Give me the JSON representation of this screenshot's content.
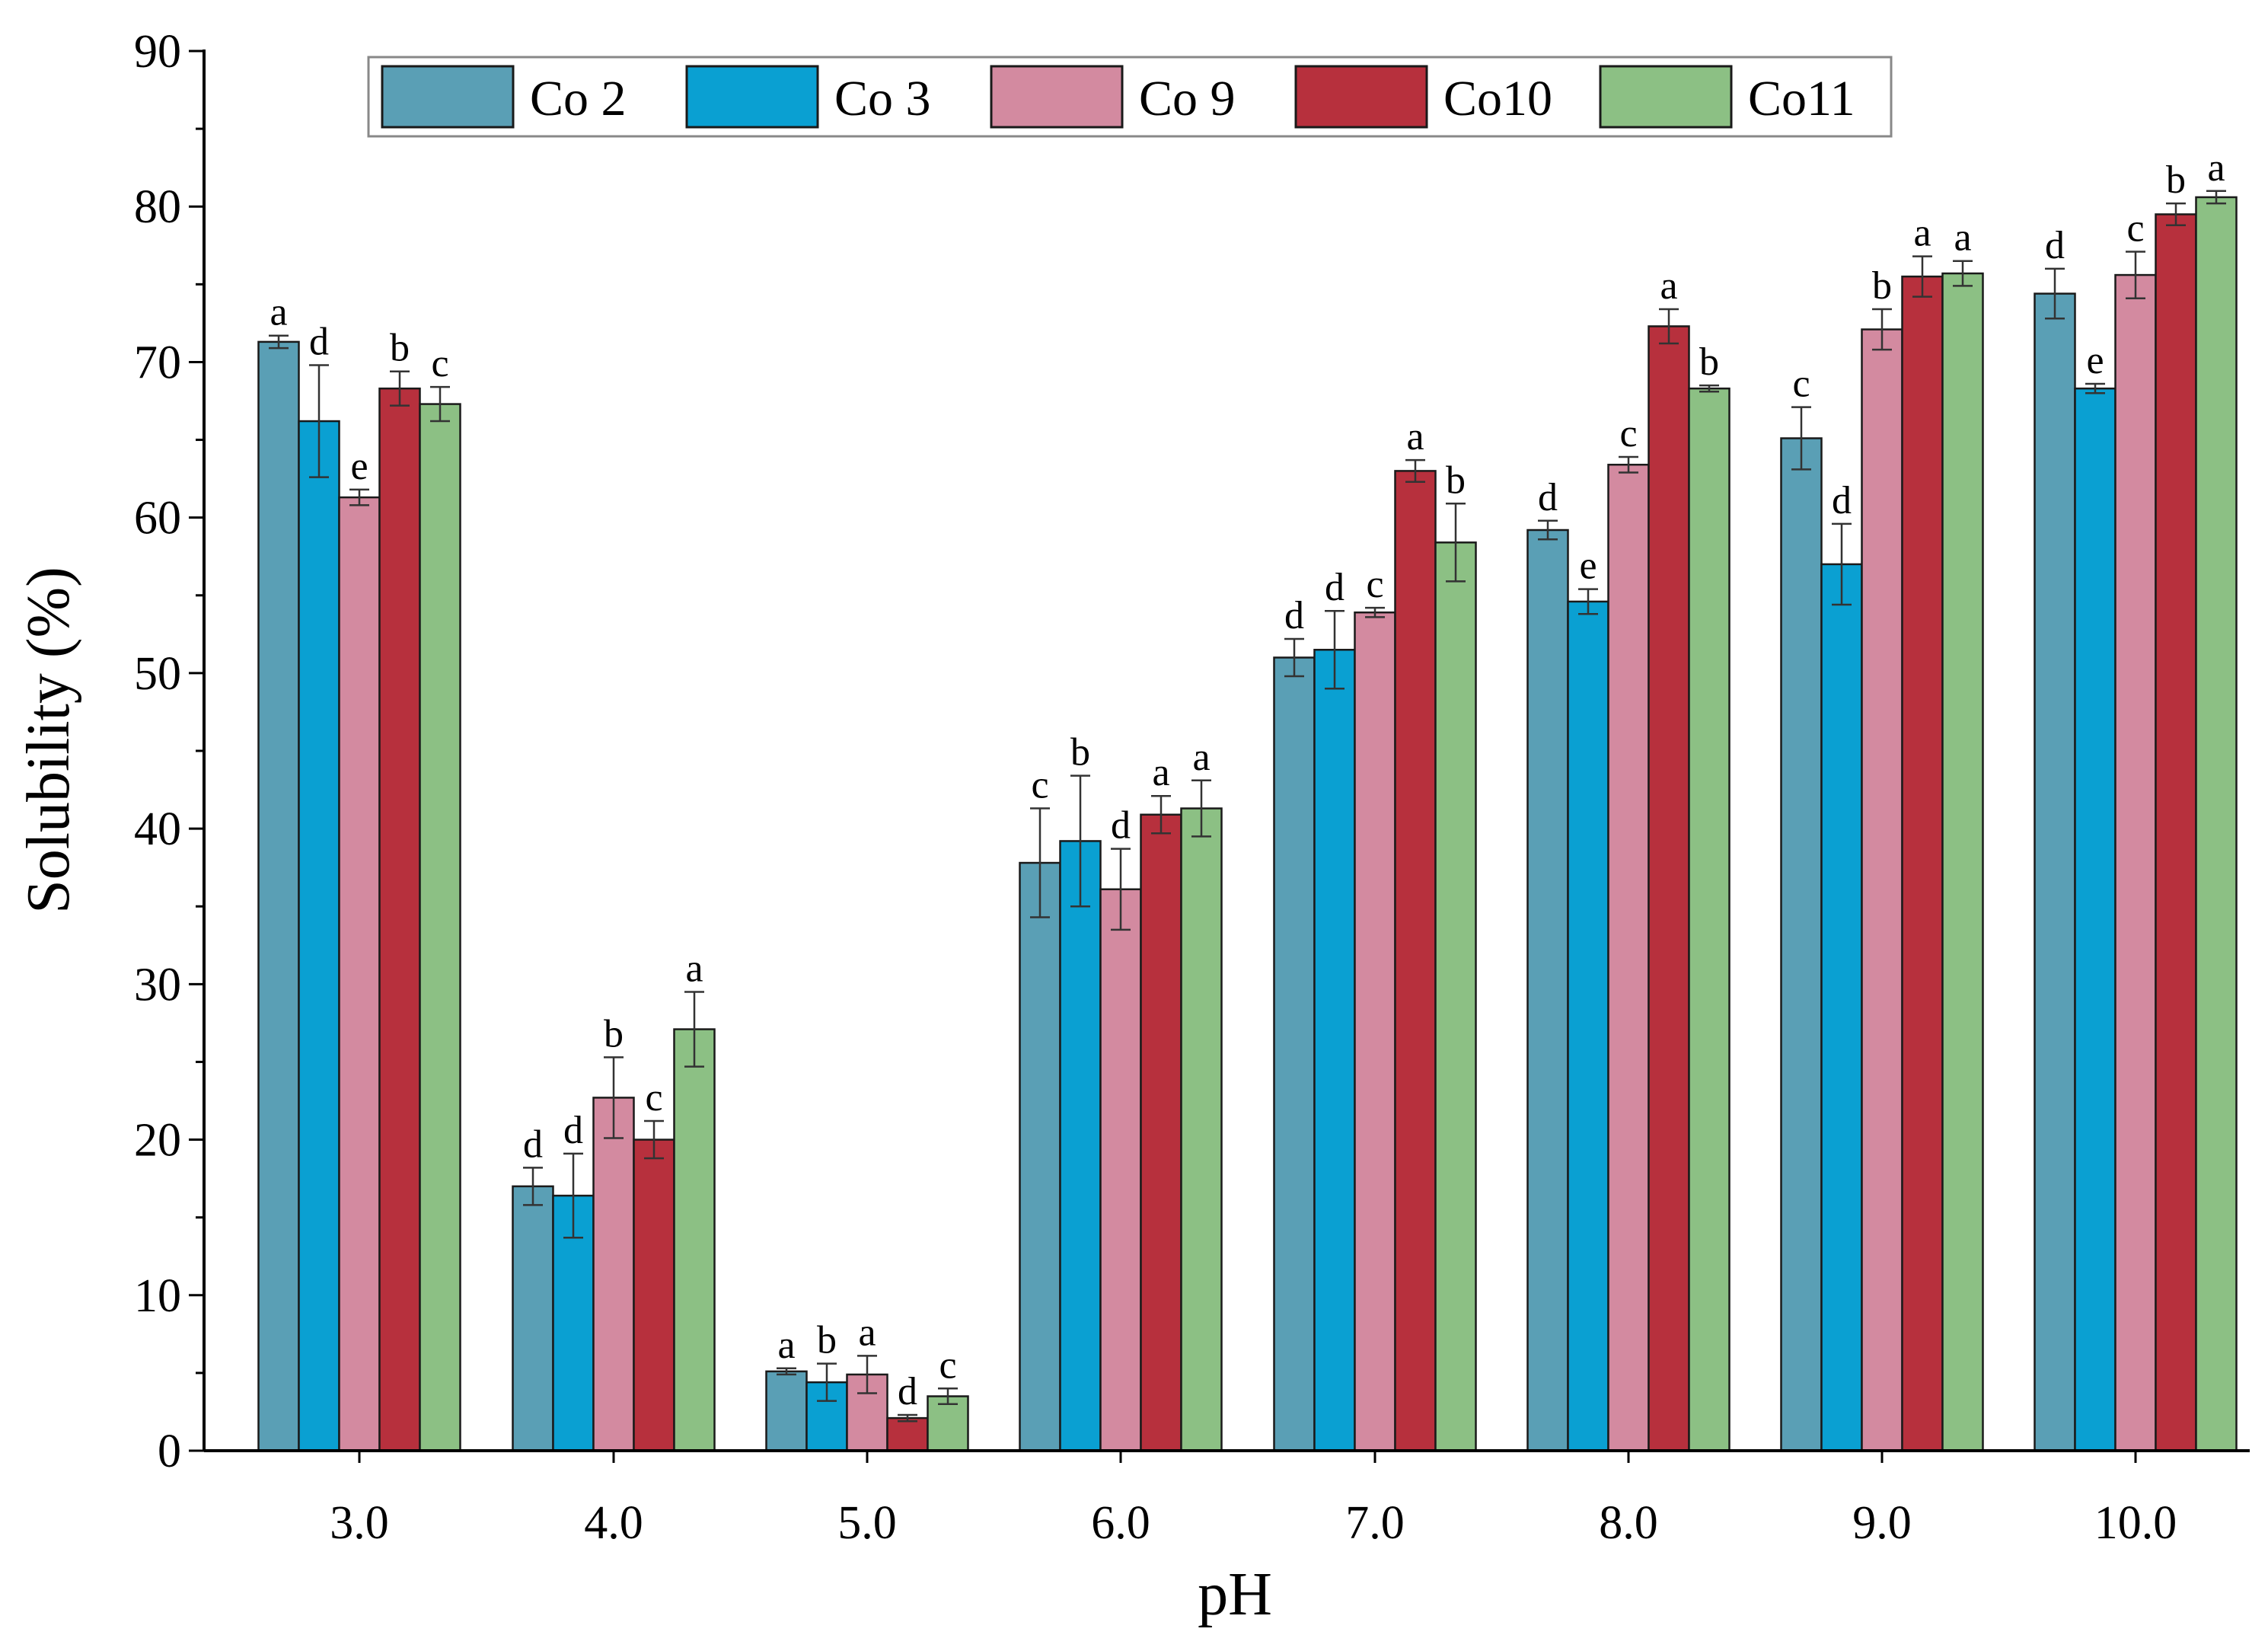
{
  "chart_data": {
    "type": "bar",
    "title": "",
    "xlabel": "pH",
    "ylabel": "Solubility (%)",
    "ylim": [
      0,
      90
    ],
    "yticks": [
      "0",
      "10",
      "20",
      "30",
      "40",
      "50",
      "60",
      "70",
      "80",
      "90"
    ],
    "grid": false,
    "legend_position": "top",
    "categories": [
      "3.0",
      "4.0",
      "5.0",
      "6.0",
      "7.0",
      "8.0",
      "9.0",
      "10.0"
    ],
    "series": [
      {
        "name": "Co 2",
        "color": "#5a9fb5",
        "values": [
          71.3,
          17.0,
          5.1,
          37.8,
          51.0,
          59.2,
          65.1,
          74.4
        ],
        "errors": [
          0.4,
          1.2,
          0.2,
          3.5,
          1.2,
          0.6,
          2.0,
          1.6
        ],
        "labels": [
          "a",
          "d",
          "a",
          "c",
          "d",
          "d",
          "c",
          "d"
        ]
      },
      {
        "name": "Co 3",
        "color": "#0aa0d2",
        "values": [
          66.2,
          16.4,
          4.4,
          39.2,
          51.5,
          54.6,
          57.0,
          68.3
        ],
        "errors": [
          3.6,
          2.7,
          1.2,
          4.2,
          2.5,
          0.8,
          2.6,
          0.3
        ],
        "labels": [
          "d",
          "d",
          "b",
          "b",
          "d",
          "e",
          "d",
          "e"
        ]
      },
      {
        "name": "Co 9",
        "color": "#d38aa0",
        "values": [
          61.3,
          22.7,
          4.9,
          36.1,
          53.9,
          63.4,
          72.1,
          75.6
        ],
        "errors": [
          0.5,
          2.6,
          1.2,
          2.6,
          0.3,
          0.5,
          1.3,
          1.5
        ],
        "labels": [
          "e",
          "b",
          "a",
          "d",
          "c",
          "c",
          "b",
          "c"
        ]
      },
      {
        "name": "Co10",
        "color": "#b7303d",
        "values": [
          68.3,
          20.0,
          2.1,
          40.9,
          63.0,
          72.3,
          75.5,
          79.5
        ],
        "errors": [
          1.1,
          1.2,
          0.2,
          1.2,
          0.7,
          1.1,
          1.3,
          0.7
        ],
        "labels": [
          "b",
          "c",
          "d",
          "a",
          "a",
          "a",
          "a",
          "b"
        ]
      },
      {
        "name": "Co11",
        "color": "#8cc084",
        "values": [
          67.3,
          27.1,
          3.5,
          41.3,
          58.4,
          68.3,
          75.7,
          80.6
        ],
        "errors": [
          1.1,
          2.4,
          0.5,
          1.8,
          2.5,
          0.2,
          0.8,
          0.4
        ],
        "labels": [
          "c",
          "a",
          "c",
          "a",
          "b",
          "b",
          "a",
          "a"
        ]
      }
    ]
  }
}
